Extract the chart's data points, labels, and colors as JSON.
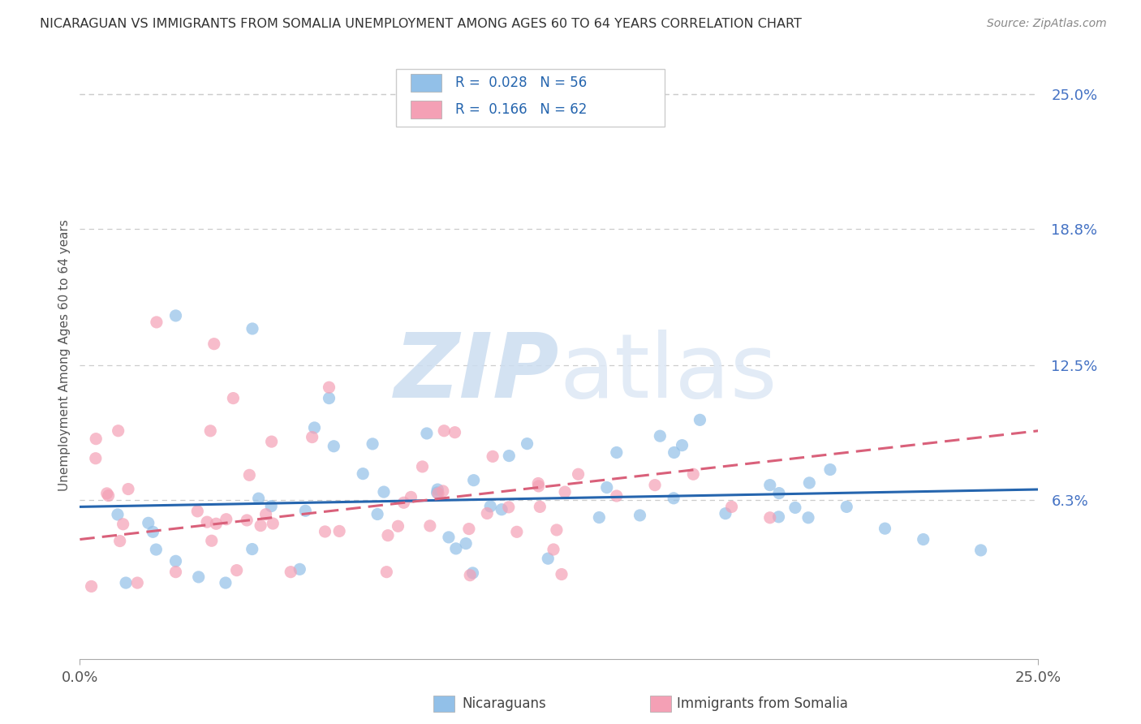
{
  "title": "NICARAGUAN VS IMMIGRANTS FROM SOMALIA UNEMPLOYMENT AMONG AGES 60 TO 64 YEARS CORRELATION CHART",
  "source": "Source: ZipAtlas.com",
  "ylabel": "Unemployment Among Ages 60 to 64 years",
  "ytick_labels": [
    "6.3%",
    "12.5%",
    "18.8%",
    "25.0%"
  ],
  "ytick_values": [
    0.063,
    0.125,
    0.188,
    0.25
  ],
  "xmin": 0.0,
  "xmax": 0.25,
  "ymin": -0.01,
  "ymax": 0.27,
  "watermark": "ZIPatlas",
  "legend_r_blue": "0.028",
  "legend_n_blue": "56",
  "legend_r_pink": "0.166",
  "legend_n_pink": "62",
  "blue_line_y0": 0.06,
  "blue_line_y1": 0.068,
  "pink_line_y0": 0.045,
  "pink_line_y1": 0.095,
  "blue_color": "#92c0e8",
  "pink_color": "#f4a0b5",
  "blue_line_color": "#2565ae",
  "pink_line_color": "#d9607a",
  "watermark_color": "#dce9f5",
  "background_color": "#ffffff",
  "grid_color": "#cccccc",
  "title_color": "#333333",
  "source_color": "#888888",
  "ylabel_color": "#555555",
  "tick_color": "#4472c4",
  "xtick_color": "#555555"
}
